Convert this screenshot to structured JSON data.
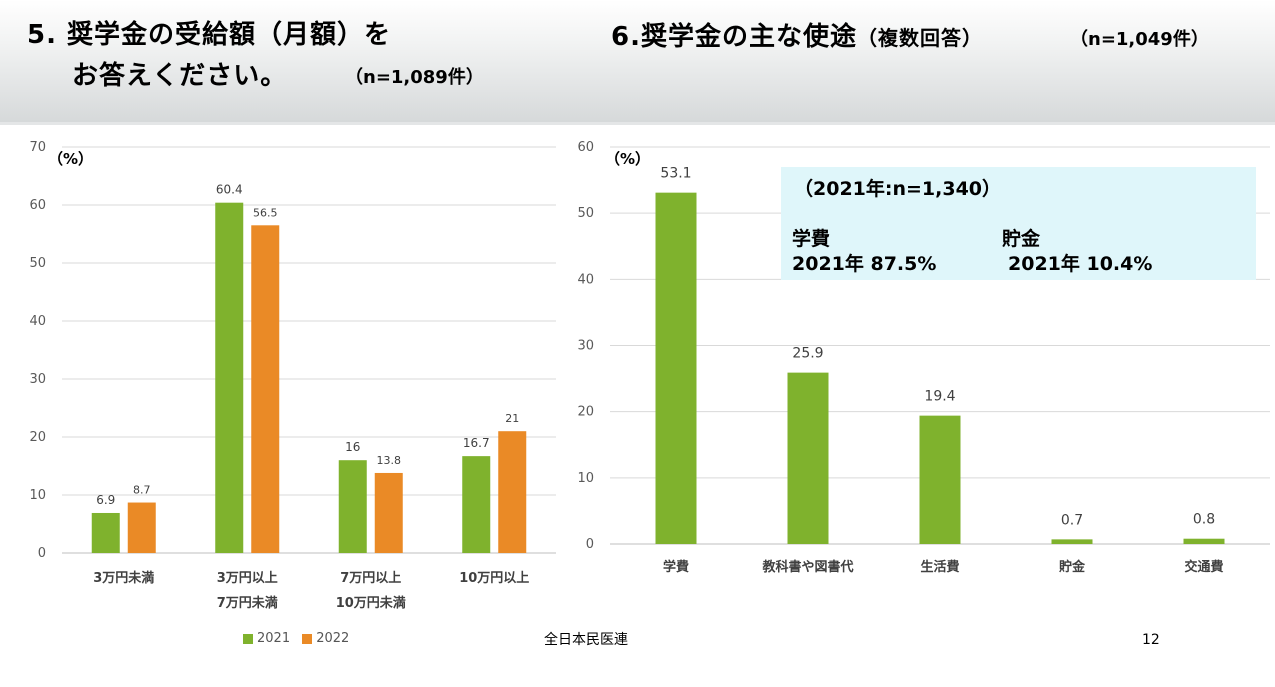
{
  "header": {
    "left_title_line1": "5. 奨学金の受給額（月額）を",
    "left_title_line2": "お答えください。",
    "left_n": "（n=1,089件）",
    "right_title": "6.奨学金の主な使途",
    "right_title_suffix": "（複数回答）",
    "right_n": "（n=1,049件）"
  },
  "note": {
    "title": "（2021年:n=1,340）",
    "label1": "学費",
    "label2": "貯金",
    "value1": "2021年 87.5%",
    "value2": "2021年 10.4%"
  },
  "footer": {
    "org": "全日本民医連",
    "page": "12"
  },
  "colors": {
    "series_2021": "#7fb22d",
    "series_2022": "#ea8a26",
    "note_bg": "#dff6fa"
  },
  "chart_data": [
    {
      "type": "bar",
      "unit_label": "（%）",
      "categories": [
        [
          "3万円未満"
        ],
        [
          "3万円以上",
          "7万円未満"
        ],
        [
          "7万円以上",
          "10万円未満"
        ],
        [
          "10万円以上"
        ]
      ],
      "series": [
        {
          "name": "2021",
          "values": [
            6.9,
            60.4,
            16,
            16.7
          ],
          "labels": [
            "6.9",
            "60.4",
            "16",
            "16.7"
          ]
        },
        {
          "name": "2022",
          "values": [
            8.7,
            56.5,
            13.8,
            21
          ],
          "labels": [
            "8.7",
            "56.5",
            "13.8",
            "21"
          ]
        }
      ],
      "ylim": [
        0,
        70
      ],
      "yticks": [
        0,
        10,
        20,
        30,
        40,
        50,
        60,
        70
      ],
      "grid": true,
      "legend": "bottom"
    },
    {
      "type": "bar",
      "unit_label": "（%）",
      "categories": [
        [
          "学費"
        ],
        [
          "教科書や図書代"
        ],
        [
          "生活費"
        ],
        [
          "貯金"
        ],
        [
          "交通費"
        ]
      ],
      "series": [
        {
          "values": [
            53.1,
            25.9,
            19.4,
            0.7,
            0.8
          ],
          "labels": [
            "53.1",
            "25.9",
            "19.4",
            "0.7",
            "0.8"
          ]
        }
      ],
      "ylim": [
        0,
        60
      ],
      "yticks": [
        0,
        10,
        20,
        30,
        40,
        50,
        60
      ],
      "grid": true
    }
  ]
}
